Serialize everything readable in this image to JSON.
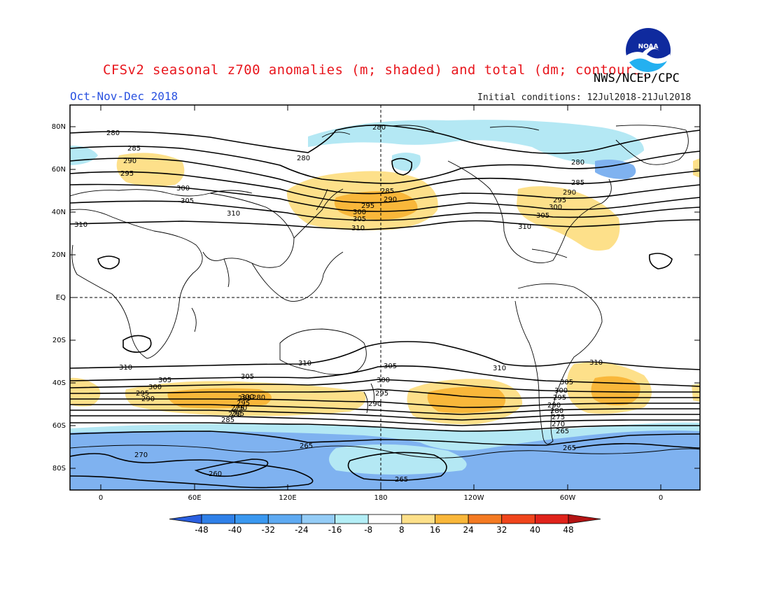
{
  "header": {
    "title": "CFSv2 seasonal z700 anomalies (m; shaded) and total (dm; contours)",
    "season": "Oct-Nov-Dec 2018",
    "agency": "NWS/NCEP/CPC",
    "initial_conditions": "Initial conditions: 12Jul2018-21Jul2018",
    "logo_text": "NOAA"
  },
  "map": {
    "lat_labels": [
      "80N",
      "60N",
      "40N",
      "20N",
      "EQ",
      "20S",
      "40S",
      "60S",
      "80S"
    ],
    "lon_labels": [
      "0",
      "60E",
      "120E",
      "180",
      "120W",
      "60W",
      "0"
    ],
    "contour_labels": [
      "280",
      "285",
      "290",
      "295",
      "300",
      "305",
      "310",
      "310",
      "280",
      "280",
      "285",
      "290",
      "295",
      "300",
      "305",
      "310",
      "280",
      "285",
      "290",
      "295",
      "300",
      "305",
      "310",
      "310",
      "310",
      "305",
      "300",
      "295",
      "290",
      "305",
      "300",
      "295",
      "290",
      "305",
      "300",
      "295",
      "290",
      "310",
      "310",
      "305",
      "300",
      "295",
      "290",
      "285",
      "280",
      "275",
      "270",
      "265",
      "285",
      "280",
      "275",
      "270",
      "265",
      "265",
      "265",
      "270",
      "260",
      "265"
    ],
    "colors": {
      "neg_deep": "#7fb2f0",
      "neg_light": "#b4e8f4",
      "pos_light": "#fde08a",
      "pos_mid": "#f9b73a"
    }
  },
  "colorbar": {
    "ticks": [
      "-48",
      "-40",
      "-32",
      "-24",
      "-16",
      "-8",
      "8",
      "16",
      "24",
      "32",
      "40",
      "48"
    ],
    "colors": [
      "#2a5fe0",
      "#2f80e8",
      "#3a98f0",
      "#5eaaf2",
      "#94ccf6",
      "#b4eef6",
      "#ffffff",
      "#fde08a",
      "#f9b73a",
      "#f47a22",
      "#f0451c",
      "#e0231b",
      "#b41414"
    ]
  }
}
